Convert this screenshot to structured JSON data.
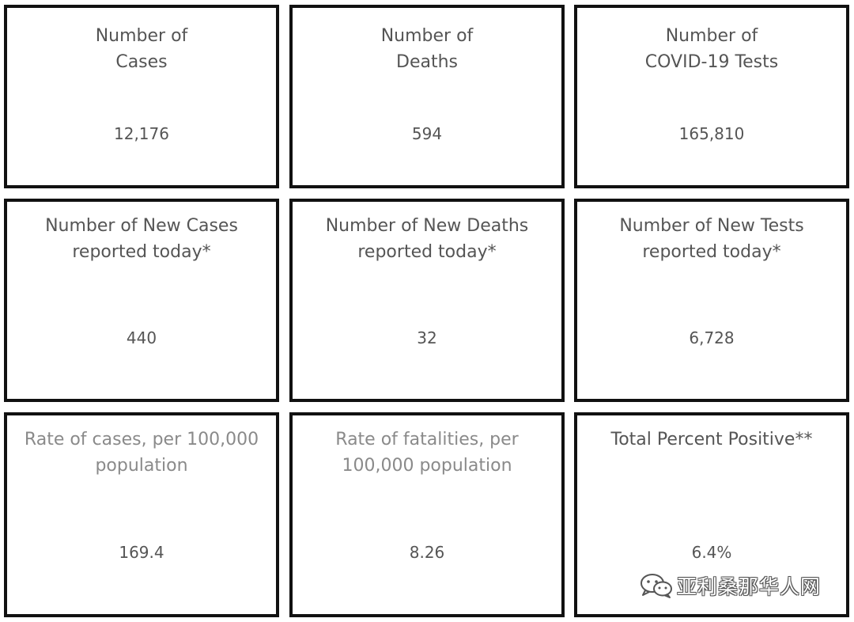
{
  "cards": [
    {
      "title": "Number of\nCases",
      "value": "12,176"
    },
    {
      "title": "Number of\nDeaths",
      "value": "594"
    },
    {
      "title": "Number of\nCOVID-19 Tests",
      "value": "165,810"
    },
    {
      "title": "Number of New Cases\nreported today*",
      "value": "440"
    },
    {
      "title": "Number of New Deaths\nreported today*",
      "value": "32"
    },
    {
      "title": "Number of New Tests\nreported today*",
      "value": "6,728"
    },
    {
      "title": "Rate of cases, per 100,000\npopulation",
      "value": "169.4"
    },
    {
      "title": "Rate of fatalities, per\n100,000 population",
      "value": "8.26"
    },
    {
      "title": "Total Percent Positive**",
      "value": "6.4%"
    }
  ],
  "watermark": {
    "text": "亚利桑那华人网",
    "icon": "wechat-icon"
  },
  "colors": {
    "border": "#111111",
    "text": "#555555",
    "text_light": "#8a8a8a"
  }
}
